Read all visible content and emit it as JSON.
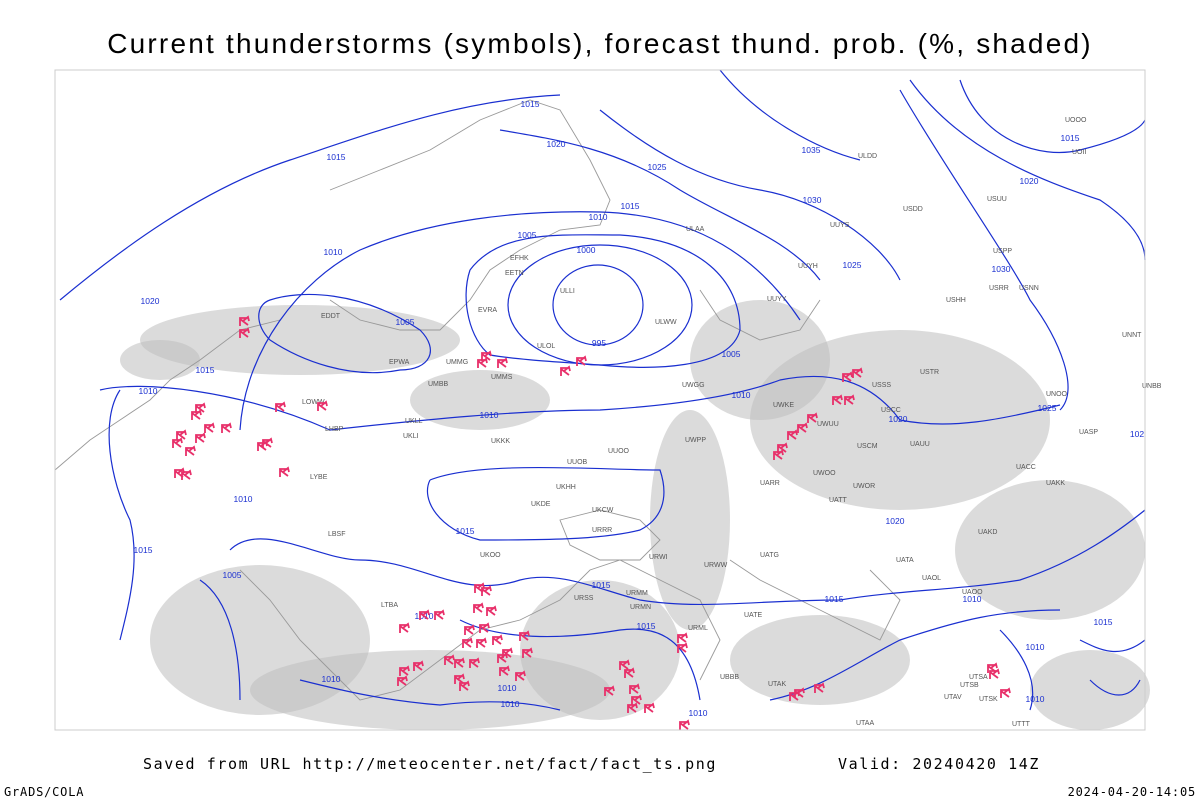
{
  "header": {
    "title": "Current thunderstorms (symbols), forecast thund. prob. (%, shaded)"
  },
  "footer": {
    "saved": "Saved from URL http://meteocenter.net/fact/fact_ts.png",
    "valid": "Valid: 20240420 14Z",
    "left": "GrADS/COLA",
    "right": "2024-04-20-14:05"
  },
  "isobars": {
    "labels": [
      1015,
      1020,
      1015,
      1025,
      1035,
      1015,
      1010,
      1030,
      1005,
      1000,
      1010,
      1020,
      1005,
      995,
      1005,
      1015,
      1010,
      1010,
      1010,
      1020,
      1020,
      1025,
      1030,
      1020,
      1015,
      1025,
      1010,
      1015,
      1015,
      1005,
      1015,
      1015,
      1010,
      1010,
      1015,
      1015,
      1010,
      1010,
      1010,
      1010,
      1010,
      1010,
      102
    ]
  },
  "stations": [
    "ULAA",
    "ULWW",
    "ULOL",
    "ULLI",
    "EVRA",
    "EFHK",
    "EETN",
    "UMMS",
    "UMMG",
    "EPWA",
    "UMBB",
    "UKLL",
    "UKLI",
    "UKKK",
    "UUOB",
    "UUOO",
    "UWPP",
    "UWGG",
    "UWKE",
    "UWUU",
    "USSS",
    "USCC",
    "USTR",
    "UNOO",
    "UNBB",
    "UASP",
    "UACC",
    "UAKK",
    "UAKD",
    "UATA",
    "UAOL",
    "UAOO",
    "UTAA",
    "UTTT",
    "UBBB",
    "LTBA",
    "LBSF",
    "LYBE",
    "LHBP",
    "LOWW",
    "EDDT",
    "URWW",
    "URML",
    "URMN",
    "URMM",
    "URSS",
    "UKOO",
    "UKDE",
    "UKHH",
    "UKCW",
    "URRR",
    "URWI",
    "UUYY",
    "UUYH",
    "UUYS",
    "ULDD",
    "USDD",
    "USUU",
    "USPP",
    "USHH",
    "USRR",
    "USNN",
    "UOOO",
    "UOII",
    "UNNT",
    "USCM",
    "UAUU",
    "UWOO",
    "UWOR",
    "UATT",
    "UARR",
    "UATG",
    "UATE",
    "UTAK",
    "UTSA",
    "UTSB",
    "UTAV",
    "UTSK"
  ]
}
